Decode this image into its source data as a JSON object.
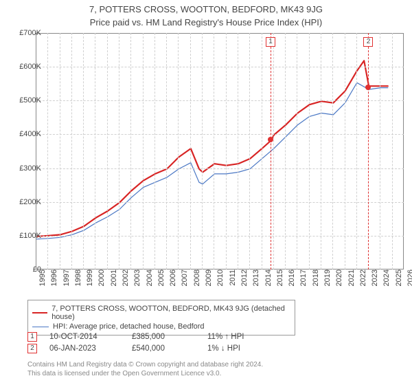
{
  "titles": {
    "line1": "7, POTTERS CROSS, WOOTTON, BEDFORD, MK43 9JG",
    "line2": "Price paid vs. HM Land Registry's House Price Index (HPI)"
  },
  "chart": {
    "type": "line",
    "background_color": "#ffffff",
    "grid_color": "#d0d0d0",
    "border_color": "#888888",
    "xlim": [
      1995,
      2026
    ],
    "ylim": [
      0,
      700000
    ],
    "yticks": [
      0,
      100000,
      200000,
      300000,
      400000,
      500000,
      600000,
      700000
    ],
    "ytick_labels": [
      "£0",
      "£100K",
      "£200K",
      "£300K",
      "£400K",
      "£500K",
      "£600K",
      "£700K"
    ],
    "xticks": [
      1995,
      1996,
      1997,
      1998,
      1999,
      2000,
      2001,
      2002,
      2003,
      2004,
      2005,
      2006,
      2007,
      2008,
      2009,
      2010,
      2011,
      2012,
      2013,
      2014,
      2015,
      2016,
      2017,
      2018,
      2019,
      2020,
      2021,
      2022,
      2023,
      2024,
      2025,
      2026
    ],
    "axis_fontsize": 11,
    "line_width_primary": 2.2,
    "line_width_secondary": 1.2,
    "series": [
      {
        "id": "subject",
        "label": "7, POTTERS CROSS, WOOTTON, BEDFORD, MK43 9JG (detached house)",
        "color": "#d82424",
        "points": [
          [
            1995,
            100000
          ],
          [
            1996,
            102000
          ],
          [
            1997,
            105000
          ],
          [
            1998,
            115000
          ],
          [
            1999,
            130000
          ],
          [
            2000,
            155000
          ],
          [
            2001,
            175000
          ],
          [
            2002,
            200000
          ],
          [
            2003,
            235000
          ],
          [
            2004,
            265000
          ],
          [
            2005,
            285000
          ],
          [
            2006,
            300000
          ],
          [
            2007,
            335000
          ],
          [
            2008,
            360000
          ],
          [
            2008.7,
            300000
          ],
          [
            2009,
            290000
          ],
          [
            2010,
            315000
          ],
          [
            2011,
            310000
          ],
          [
            2012,
            315000
          ],
          [
            2013,
            330000
          ],
          [
            2014,
            360000
          ],
          [
            2014.8,
            385000
          ],
          [
            2015,
            400000
          ],
          [
            2016,
            430000
          ],
          [
            2017,
            465000
          ],
          [
            2018,
            490000
          ],
          [
            2019,
            500000
          ],
          [
            2020,
            495000
          ],
          [
            2021,
            530000
          ],
          [
            2022,
            590000
          ],
          [
            2022.6,
            620000
          ],
          [
            2023,
            545000
          ],
          [
            2024,
            545000
          ],
          [
            2024.6,
            545000
          ]
        ]
      },
      {
        "id": "hpi",
        "label": "HPI: Average price, detached house, Bedford",
        "color": "#4a77c4",
        "points": [
          [
            1995,
            92000
          ],
          [
            1996,
            94000
          ],
          [
            1997,
            97000
          ],
          [
            1998,
            105000
          ],
          [
            1999,
            118000
          ],
          [
            2000,
            140000
          ],
          [
            2001,
            158000
          ],
          [
            2002,
            180000
          ],
          [
            2003,
            215000
          ],
          [
            2004,
            245000
          ],
          [
            2005,
            260000
          ],
          [
            2006,
            275000
          ],
          [
            2007,
            300000
          ],
          [
            2008,
            318000
          ],
          [
            2008.7,
            260000
          ],
          [
            2009,
            255000
          ],
          [
            2010,
            285000
          ],
          [
            2011,
            285000
          ],
          [
            2012,
            290000
          ],
          [
            2013,
            300000
          ],
          [
            2014,
            330000
          ],
          [
            2015,
            360000
          ],
          [
            2016,
            395000
          ],
          [
            2017,
            430000
          ],
          [
            2018,
            455000
          ],
          [
            2019,
            465000
          ],
          [
            2020,
            460000
          ],
          [
            2021,
            495000
          ],
          [
            2022,
            555000
          ],
          [
            2023,
            535000
          ],
          [
            2024,
            540000
          ],
          [
            2024.6,
            540000
          ]
        ]
      }
    ],
    "sale_markers": [
      {
        "n": "1",
        "x": 2014.78,
        "y": 385000
      },
      {
        "n": "2",
        "x": 2023.02,
        "y": 540000
      }
    ]
  },
  "legend": {
    "rows": [
      {
        "color": "#d82424",
        "width": 2.2,
        "text": "7, POTTERS CROSS, WOOTTON, BEDFORD, MK43 9JG (detached house)"
      },
      {
        "color": "#4a77c4",
        "width": 1.2,
        "text": "HPI: Average price, detached house, Bedford"
      }
    ]
  },
  "sales_table": {
    "rows": [
      {
        "n": "1",
        "date": "10-OCT-2014",
        "price": "£385,000",
        "delta": "11% ↑ HPI"
      },
      {
        "n": "2",
        "date": "06-JAN-2023",
        "price": "£540,000",
        "delta": "1% ↓ HPI"
      }
    ]
  },
  "footer": {
    "line1": "Contains HM Land Registry data © Crown copyright and database right 2024.",
    "line2": "This data is licensed under the Open Government Licence v3.0."
  }
}
